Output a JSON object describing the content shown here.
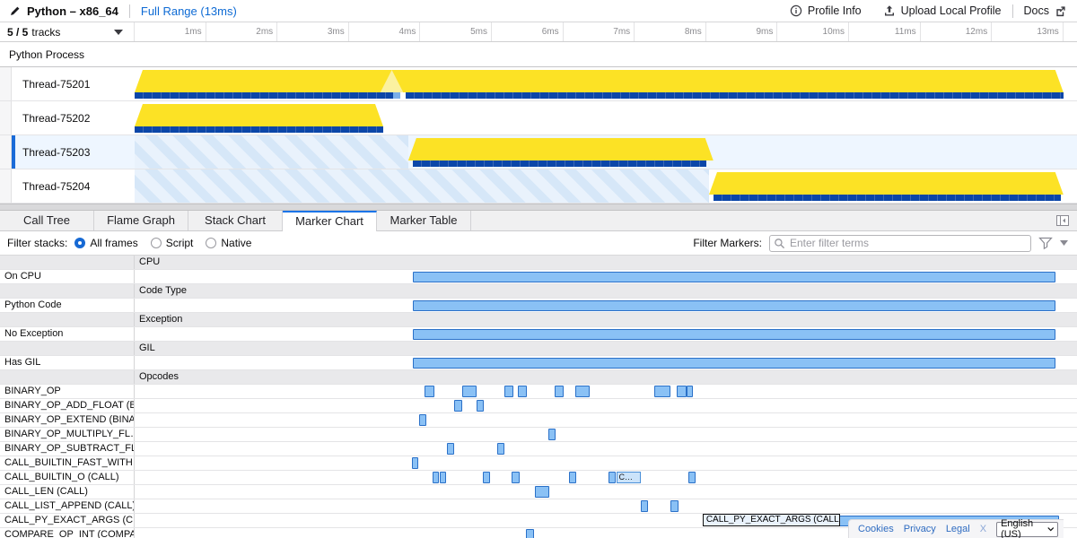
{
  "header": {
    "title": "Python – x86_64",
    "range_label": "Full Range (13ms)",
    "profile_info_label": "Profile Info",
    "upload_label": "Upload Local Profile",
    "docs_label": "Docs"
  },
  "timeline": {
    "tracks_count": "5 / 5",
    "tracks_word": "tracks",
    "ticks": [
      "1ms",
      "2ms",
      "3ms",
      "4ms",
      "5ms",
      "6ms",
      "7ms",
      "8ms",
      "9ms",
      "10ms",
      "11ms",
      "12ms",
      "13ms"
    ]
  },
  "tracks": {
    "process_label": "Python Process"
  },
  "panel": {
    "tabs": [
      {
        "label": "Call Tree",
        "selected": false
      },
      {
        "label": "Flame Graph",
        "selected": false
      },
      {
        "label": "Stack Chart",
        "selected": false
      },
      {
        "label": "Marker Chart",
        "selected": true
      },
      {
        "label": "Marker Table",
        "selected": false
      }
    ],
    "filter_stacks_label": "Filter stacks:",
    "radios": [
      {
        "label": "All frames",
        "selected": true
      },
      {
        "label": "Script",
        "selected": false
      },
      {
        "label": "Native",
        "selected": false
      }
    ],
    "filter_markers_label": "Filter Markers:",
    "search_placeholder": "Enter filter terms"
  },
  "chart_data": {
    "type": "timeline+marker-chart",
    "time_axis": {
      "unit": "ms",
      "min": 0,
      "max": 13,
      "tick_interval": 1
    },
    "threads": [
      {
        "label": "Thread-75201",
        "selected": false,
        "activity": [
          {
            "start": 0,
            "end": 13
          }
        ],
        "idle_stripes": null,
        "notch_ms": 3.6,
        "marker_strip": [
          {
            "start": 0,
            "end": 3.62,
            "style": "dark"
          },
          {
            "start": 3.62,
            "end": 3.72,
            "style": "light"
          },
          {
            "start": 3.79,
            "end": 13,
            "style": "dark"
          }
        ]
      },
      {
        "label": "Thread-75202",
        "selected": false,
        "activity": [
          {
            "start": 0,
            "end": 3.48
          }
        ],
        "idle_stripes": null,
        "marker_strip": [
          {
            "start": 0,
            "end": 3.48,
            "style": "dark"
          }
        ]
      },
      {
        "label": "Thread-75203",
        "selected": true,
        "activity": [
          {
            "start": 3.83,
            "end": 8.1
          }
        ],
        "idle_stripes": {
          "start": 0,
          "end": 3.83
        },
        "marker_strip": [
          {
            "start": 3.9,
            "end": 8.0,
            "style": "dark"
          }
        ]
      },
      {
        "label": "Thread-75204",
        "selected": false,
        "activity": [
          {
            "start": 8.04,
            "end": 13
          }
        ],
        "idle_stripes": {
          "start": 0,
          "end": 8.04
        },
        "marker_strip": [
          {
            "start": 8.1,
            "end": 12.97,
            "style": "dark"
          }
        ]
      }
    ],
    "marker_rows": [
      {
        "kind": "header",
        "label": "CPU"
      },
      {
        "kind": "row",
        "label": "On CPU",
        "spans": [
          {
            "start": 3.89,
            "dur": 9.0,
            "style": "range"
          }
        ]
      },
      {
        "kind": "header",
        "label": "Code Type"
      },
      {
        "kind": "row",
        "label": "Python Code",
        "spans": [
          {
            "start": 3.89,
            "dur": 9.0,
            "style": "range"
          }
        ]
      },
      {
        "kind": "header",
        "label": "Exception"
      },
      {
        "kind": "row",
        "label": "No Exception",
        "spans": [
          {
            "start": 3.89,
            "dur": 9.0,
            "style": "range"
          }
        ]
      },
      {
        "kind": "header",
        "label": "GIL"
      },
      {
        "kind": "row",
        "label": "Has GIL",
        "spans": [
          {
            "start": 3.89,
            "dur": 9.0,
            "style": "range"
          }
        ]
      },
      {
        "kind": "header",
        "label": "Opcodes"
      },
      {
        "kind": "row",
        "label": "BINARY_OP",
        "spans": [
          {
            "start": 4.06,
            "dur": 0.14
          },
          {
            "start": 4.58,
            "dur": 0.21
          },
          {
            "start": 5.17,
            "dur": 0.13
          },
          {
            "start": 5.36,
            "dur": 0.13
          },
          {
            "start": 5.88,
            "dur": 0.13
          },
          {
            "start": 6.17,
            "dur": 0.2
          },
          {
            "start": 7.27,
            "dur": 0.23
          },
          {
            "start": 7.59,
            "dur": 0.13
          },
          {
            "start": 7.72,
            "dur": 0.1
          }
        ]
      },
      {
        "kind": "row",
        "label": "BINARY_OP_ADD_FLOAT (B…",
        "spans": [
          {
            "start": 4.47,
            "dur": 0.11
          },
          {
            "start": 4.79,
            "dur": 0.1
          }
        ]
      },
      {
        "kind": "row",
        "label": "BINARY_OP_EXTEND (BINA…",
        "spans": [
          {
            "start": 3.98,
            "dur": 0.1
          }
        ]
      },
      {
        "kind": "row",
        "label": "BINARY_OP_MULTIPLY_FL…",
        "spans": [
          {
            "start": 5.79,
            "dur": 0.1
          }
        ]
      },
      {
        "kind": "row",
        "label": "BINARY_OP_SUBTRACT_FL…",
        "spans": [
          {
            "start": 4.37,
            "dur": 0.1
          },
          {
            "start": 5.07,
            "dur": 0.11
          }
        ]
      },
      {
        "kind": "row",
        "label": "CALL_BUILTIN_FAST_WITH…",
        "spans": [
          {
            "start": 3.88,
            "dur": 0.09
          }
        ]
      },
      {
        "kind": "row",
        "label": "CALL_BUILTIN_O (CALL)",
        "spans": [
          {
            "start": 4.17,
            "dur": 0.09
          },
          {
            "start": 4.27,
            "dur": 0.09
          },
          {
            "start": 4.87,
            "dur": 0.1
          },
          {
            "start": 5.28,
            "dur": 0.11
          },
          {
            "start": 6.08,
            "dur": 0.1
          },
          {
            "start": 6.63,
            "dur": 0.1
          },
          {
            "start": 6.74,
            "dur": 0.35,
            "text": "C…"
          },
          {
            "start": 7.75,
            "dur": 0.1
          }
        ]
      },
      {
        "kind": "row",
        "label": "CALL_LEN (CALL)",
        "spans": [
          {
            "start": 5.6,
            "dur": 0.21
          }
        ]
      },
      {
        "kind": "row",
        "label": "CALL_LIST_APPEND (CALL)",
        "spans": [
          {
            "start": 7.08,
            "dur": 0.11
          },
          {
            "start": 7.5,
            "dur": 0.11
          }
        ]
      },
      {
        "kind": "row",
        "label": "CALL_PY_EXACT_ARGS (C…",
        "spans": [
          {
            "start": 7.99,
            "dur": 4.95,
            "selected": true,
            "text": "CALL_PY_EXACT_ARGS (CALL)",
            "text_start": 7.95,
            "text_dur": 1.93
          }
        ]
      },
      {
        "kind": "row",
        "label": "COMPARE_OP_INT (COMPA…",
        "spans": [
          {
            "start": 5.48,
            "dur": 0.11
          }
        ]
      }
    ]
  },
  "footer": {
    "links": [
      {
        "label": "X",
        "dim": true
      },
      {
        "label": "Legal",
        "dim": false
      },
      {
        "label": "Privacy",
        "dim": false
      },
      {
        "label": "Cookies",
        "dim": false
      }
    ],
    "language": "English (US)"
  }
}
